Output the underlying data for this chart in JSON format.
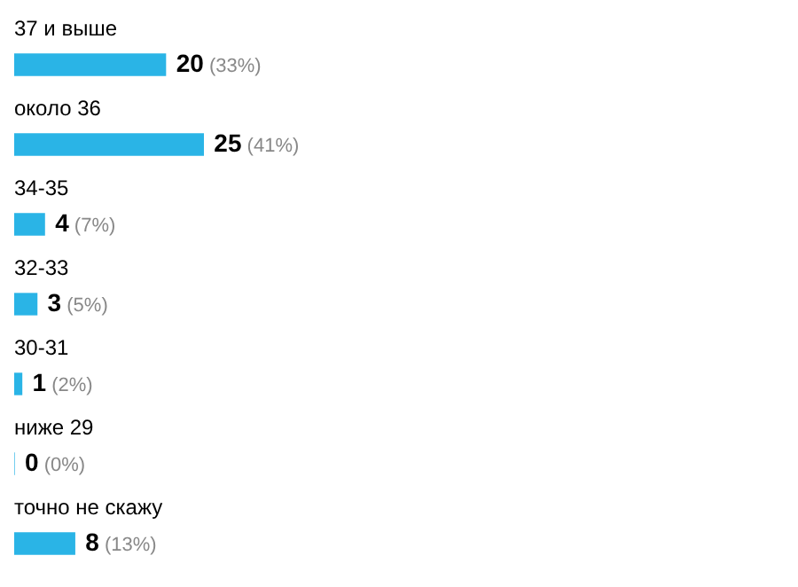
{
  "chart_data": {
    "type": "bar",
    "orientation": "horizontal",
    "categories": [
      "37 и выше",
      "около 36",
      "34-35",
      "32-33",
      "30-31",
      "ниже 29",
      "точно не скажу"
    ],
    "values": [
      20,
      25,
      4,
      3,
      1,
      0,
      8
    ],
    "color": "#2ab4e6",
    "value_labels": [
      "20 (33%)",
      "25 (41%)",
      "4 (7%)",
      "3 (5%)",
      "1 (2%)",
      "0 (0%)",
      "8 (13%)"
    ]
  }
}
